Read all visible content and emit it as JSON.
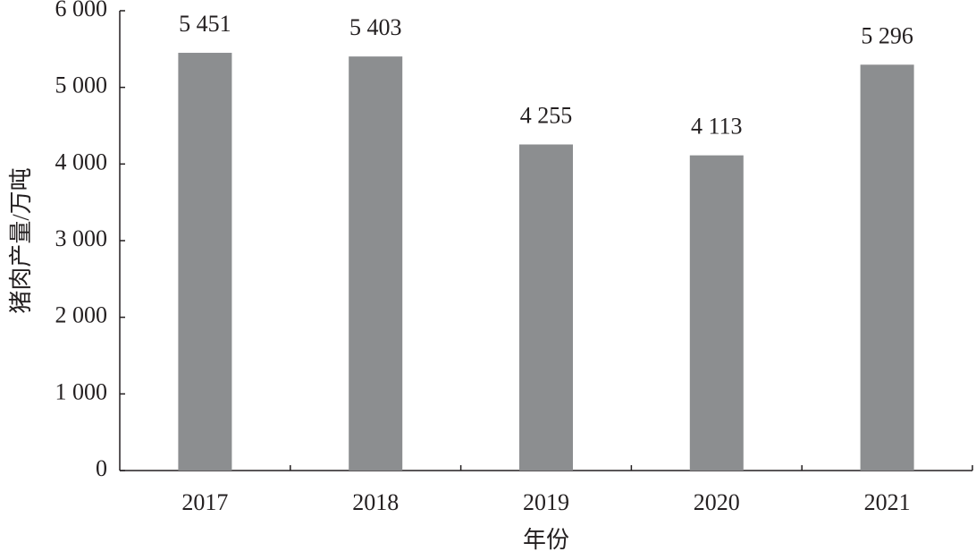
{
  "chart_data": {
    "type": "bar",
    "x_label": "年份",
    "y_label": "猪肉产量/万吨",
    "categories": [
      "2017",
      "2018",
      "2019",
      "2020",
      "2021"
    ],
    "values": [
      5451,
      5403,
      4255,
      4113,
      5296
    ],
    "value_labels": [
      "5 451",
      "5 403",
      "4 255",
      "4 113",
      "5 296"
    ],
    "color": "#8c8e90",
    "ylim": [
      0,
      6000
    ],
    "yticks": [
      0,
      {
        "value": 1000,
        "label": "1 000"
      },
      {
        "value": 2000,
        "label": "2 000"
      },
      {
        "value": 3000,
        "label": "3 000"
      },
      {
        "value": 4000,
        "label": "4 000"
      },
      {
        "value": 5000,
        "label": "5 000"
      },
      {
        "value": 6000,
        "label": "6 000"
      }
    ],
    "grid": false
  }
}
